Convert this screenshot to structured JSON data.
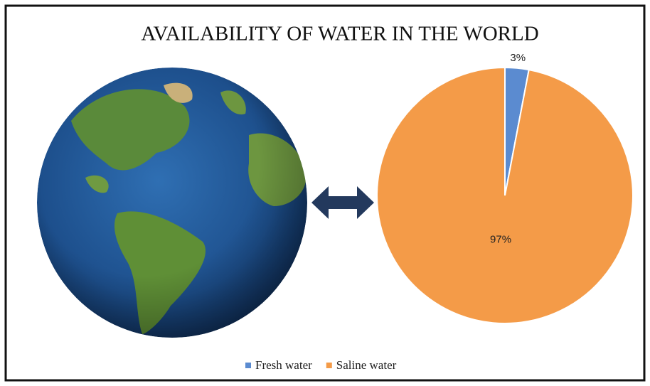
{
  "chart_data": {
    "type": "pie",
    "title": "AVAILABILITY OF WATER IN THE WORLD",
    "categories": [
      "Fresh water",
      "Saline water"
    ],
    "values": [
      3,
      97
    ],
    "value_labels": [
      "3%",
      "97%"
    ],
    "colors": [
      "#5b8bd0",
      "#f49b48"
    ],
    "legend": "bottom"
  }
}
